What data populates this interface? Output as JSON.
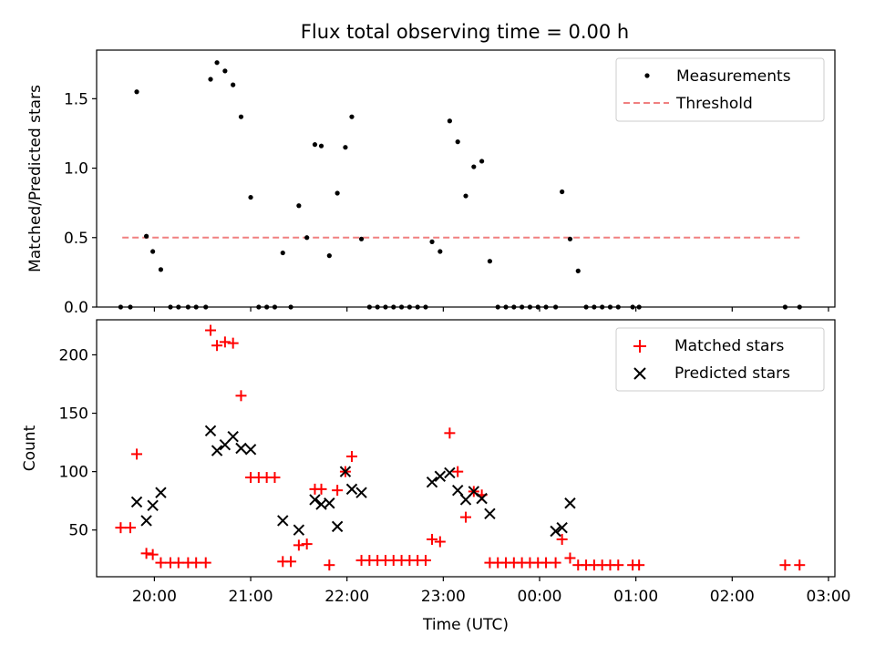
{
  "title": "Flux total observing time = 0.00 h",
  "chart_data": [
    {
      "type": "scatter",
      "panel": "top",
      "ylabel": "Matched/Predicted stars",
      "ylim": [
        0,
        1.85
      ],
      "yticks": [
        "0.0",
        "0.5",
        "1.0",
        "1.5"
      ],
      "ytick_values": [
        0,
        0.5,
        1.0,
        1.5
      ],
      "legend": {
        "placement": "top-right",
        "entries": [
          "Measurements",
          "Threshold"
        ]
      },
      "threshold": {
        "name": "Threshold",
        "value": 0.5,
        "x_start": "19:40",
        "x_end": "02:42",
        "color": "#f08080",
        "style": "dashed"
      },
      "series": [
        {
          "name": "Measurements",
          "color": "#000000",
          "marker": "dot",
          "x": [
            "19:39",
            "19:45",
            "19:49",
            "19:55",
            "19:59",
            "20:04",
            "20:10",
            "20:15",
            "20:21",
            "20:26",
            "20:32",
            "20:35",
            "20:39",
            "20:44",
            "20:49",
            "20:54",
            "21:00",
            "21:05",
            "21:10",
            "21:15",
            "21:20",
            "21:25",
            "21:30",
            "21:35",
            "21:40",
            "21:44",
            "21:49",
            "21:54",
            "21:59",
            "22:03",
            "22:09",
            "22:14",
            "22:19",
            "22:24",
            "22:29",
            "22:34",
            "22:39",
            "22:44",
            "22:49",
            "22:53",
            "22:58",
            "23:04",
            "23:09",
            "23:14",
            "23:19",
            "23:24",
            "23:29",
            "23:34",
            "23:39",
            "23:44",
            "23:49",
            "23:54",
            "23:59",
            "00:04",
            "00:10",
            "00:14",
            "00:19",
            "00:24",
            "00:29",
            "00:34",
            "00:39",
            "00:44",
            "00:49",
            "00:58",
            "01:02",
            "02:33",
            "02:42"
          ],
          "y": [
            0.0,
            0.0,
            1.55,
            0.51,
            0.4,
            0.27,
            0.0,
            0.0,
            0.0,
            0.0,
            0.0,
            1.64,
            1.76,
            1.7,
            1.6,
            1.37,
            0.79,
            0.0,
            0.0,
            0.0,
            0.39,
            0.0,
            0.73,
            0.5,
            1.17,
            1.16,
            0.37,
            0.82,
            1.15,
            1.37,
            0.49,
            0.0,
            0.0,
            0.0,
            0.0,
            0.0,
            0.0,
            0.0,
            0.0,
            0.47,
            0.4,
            1.34,
            1.19,
            0.8,
            1.01,
            1.05,
            0.33,
            0.0,
            0.0,
            0.0,
            0.0,
            0.0,
            0.0,
            0.0,
            0.0,
            0.83,
            0.49,
            0.26,
            0.0,
            0.0,
            0.0,
            0.0,
            0.0,
            0.0,
            0.0,
            0.0,
            0.0
          ]
        }
      ]
    },
    {
      "type": "scatter",
      "panel": "bottom",
      "xlabel": "Time (UTC)",
      "ylabel": "Count",
      "ylim": [
        10,
        230
      ],
      "yticks": [
        "50",
        "100",
        "150",
        "200"
      ],
      "ytick_values": [
        50,
        100,
        150,
        200
      ],
      "xlim": [
        "19:24",
        "03:04"
      ],
      "xticks": [
        "20:00",
        "21:00",
        "22:00",
        "23:00",
        "00:00",
        "01:00",
        "02:00",
        "03:00"
      ],
      "legend": {
        "placement": "top-right",
        "entries": [
          "Matched stars",
          "Predicted stars"
        ]
      },
      "series": [
        {
          "name": "Matched stars",
          "color": "#ff0000",
          "marker": "plus",
          "x": [
            "19:39",
            "19:45",
            "19:49",
            "19:55",
            "19:59",
            "20:04",
            "20:10",
            "20:15",
            "20:21",
            "20:26",
            "20:32",
            "20:35",
            "20:39",
            "20:44",
            "20:49",
            "20:54",
            "21:00",
            "21:05",
            "21:10",
            "21:15",
            "21:20",
            "21:25",
            "21:30",
            "21:35",
            "21:40",
            "21:44",
            "21:49",
            "21:54",
            "21:59",
            "22:03",
            "22:09",
            "22:14",
            "22:19",
            "22:24",
            "22:29",
            "22:34",
            "22:39",
            "22:44",
            "22:49",
            "22:53",
            "22:58",
            "23:04",
            "23:09",
            "23:14",
            "23:19",
            "23:24",
            "23:29",
            "23:34",
            "23:39",
            "23:44",
            "23:49",
            "23:54",
            "23:59",
            "00:04",
            "00:10",
            "00:14",
            "00:19",
            "00:24",
            "00:29",
            "00:34",
            "00:39",
            "00:44",
            "00:49",
            "00:58",
            "01:02",
            "02:33",
            "02:42"
          ],
          "y": [
            52,
            52,
            115,
            30,
            29,
            22,
            22,
            22,
            22,
            22,
            22,
            221,
            208,
            211,
            210,
            165,
            95,
            95,
            95,
            95,
            23,
            23,
            37,
            38,
            85,
            85,
            20,
            84,
            100,
            113,
            24,
            24,
            24,
            24,
            24,
            24,
            24,
            24,
            24,
            42,
            40,
            133,
            100,
            61,
            83,
            80,
            22,
            22,
            22,
            22,
            22,
            22,
            22,
            22,
            22,
            42,
            26,
            20,
            20,
            20,
            20,
            20,
            20,
            20,
            20,
            20,
            20
          ]
        },
        {
          "name": "Predicted stars",
          "color": "#000000",
          "marker": "x",
          "x": [
            "19:49",
            "19:55",
            "19:59",
            "20:04",
            "20:35",
            "20:39",
            "20:44",
            "20:49",
            "20:54",
            "21:00",
            "21:20",
            "21:30",
            "21:40",
            "21:44",
            "21:49",
            "21:54",
            "21:59",
            "22:03",
            "22:09",
            "22:53",
            "22:58",
            "23:04",
            "23:09",
            "23:14",
            "23:19",
            "23:24",
            "23:29",
            "00:10",
            "00:14",
            "00:19"
          ],
          "y": [
            74,
            58,
            71,
            82,
            135,
            118,
            123,
            130,
            120,
            119,
            58,
            50,
            76,
            72,
            73,
            53,
            100,
            85,
            82,
            91,
            96,
            99,
            84,
            76,
            83,
            77,
            64,
            49,
            52,
            73
          ]
        }
      ]
    }
  ]
}
